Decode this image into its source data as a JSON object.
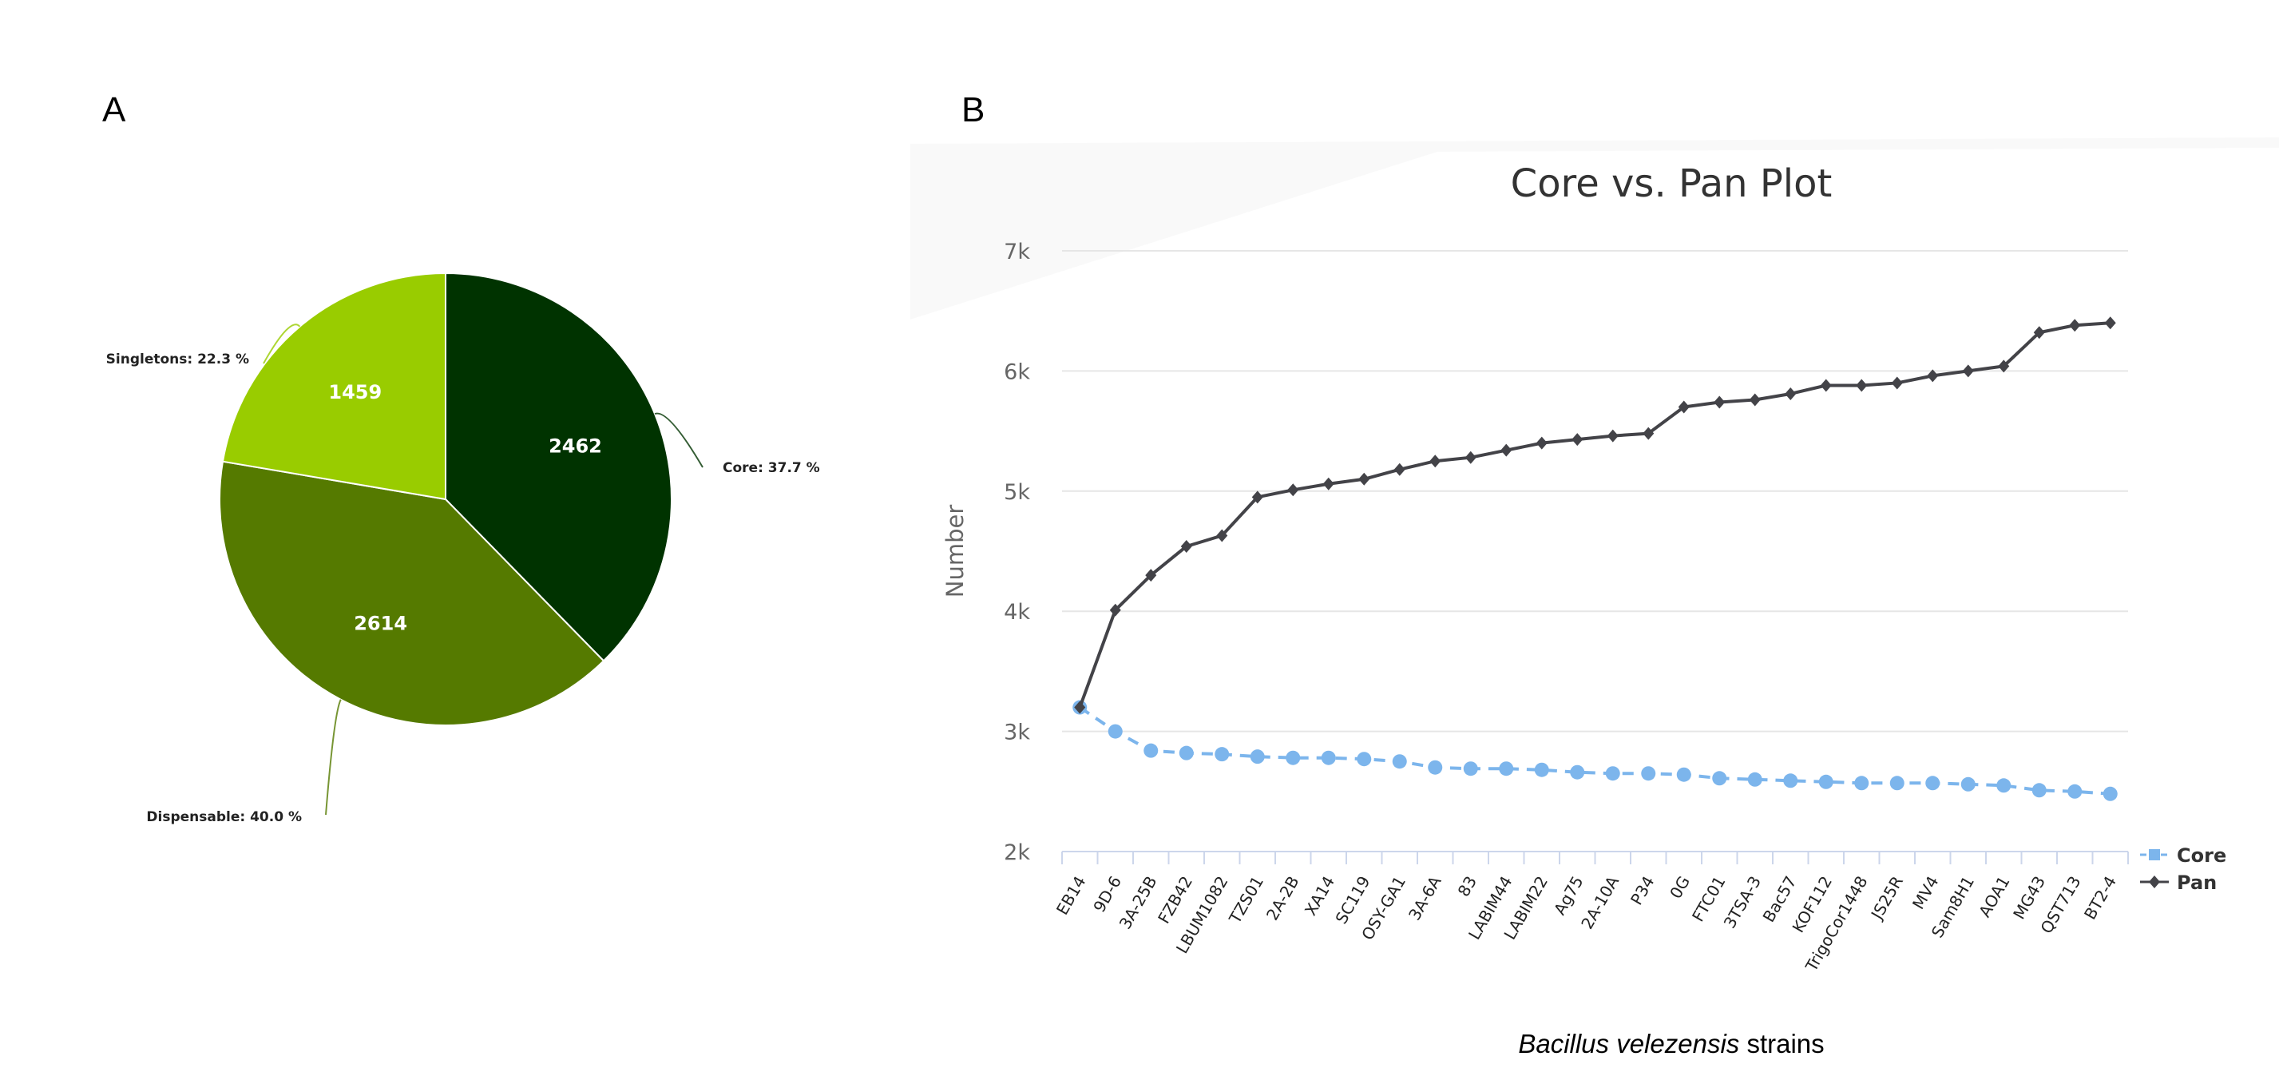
{
  "panels": {
    "a_label": "A",
    "b_label": "B"
  },
  "chart_data": [
    {
      "type": "pie",
      "slices": [
        {
          "name": "Core",
          "value": 2462,
          "percent_label": "Core: 37.7 %",
          "color": "#003300"
        },
        {
          "name": "Dispensable",
          "value": 2614,
          "percent_label": "Dispensable: 40.0 %",
          "color": "#557a00"
        },
        {
          "name": "Singletons",
          "value": 1459,
          "percent_label": "Singletons: 22.3 %",
          "color": "#99cc00"
        }
      ]
    },
    {
      "type": "line",
      "title": "Core vs. Pan Plot",
      "xlabel_italic": "Bacillus velezensis",
      "xlabel_rest": " strains",
      "ylabel": "Number",
      "ylim": [
        2000,
        7000
      ],
      "yticks": [
        2000,
        3000,
        4000,
        5000,
        6000,
        7000
      ],
      "ytick_labels": [
        "2k",
        "3k",
        "4k",
        "5k",
        "6k",
        "7k"
      ],
      "grid": true,
      "legend_position": "bottom-right",
      "categories": [
        "EB14",
        "9D-6",
        "3A-25B",
        "FZB42",
        "LBUM1082",
        "TZS01",
        "2A-2B",
        "XA14",
        "SC119",
        "OSY-GA1",
        "3A-6A",
        "83",
        "LABIM44",
        "LABIM22",
        "Ag75",
        "2A-10A",
        "P34",
        "0G",
        "FTC01",
        "3TSA-3",
        "Bac57",
        "KOF112",
        "TrigoCor1448",
        "JS25R",
        "MV4",
        "Sam8H1",
        "AOA1",
        "MG43",
        "QST713",
        "BT2-4"
      ],
      "series": [
        {
          "name": "Core",
          "color": "#7cb5ec",
          "marker": "square",
          "values": [
            3200,
            3000,
            2840,
            2820,
            2810,
            2790,
            2780,
            2780,
            2770,
            2750,
            2700,
            2690,
            2690,
            2680,
            2660,
            2650,
            2650,
            2640,
            2610,
            2600,
            2590,
            2580,
            2570,
            2570,
            2570,
            2560,
            2550,
            2510,
            2500,
            2480
          ]
        },
        {
          "name": "Pan",
          "color": "#434348",
          "marker": "diamond",
          "values": [
            3200,
            4010,
            4300,
            4540,
            4630,
            4950,
            5010,
            5060,
            5100,
            5180,
            5250,
            5280,
            5340,
            5400,
            5430,
            5460,
            5480,
            5700,
            5740,
            5760,
            5810,
            5880,
            5880,
            5900,
            5960,
            6000,
            6040,
            6320,
            6380,
            6400
          ]
        }
      ]
    }
  ]
}
